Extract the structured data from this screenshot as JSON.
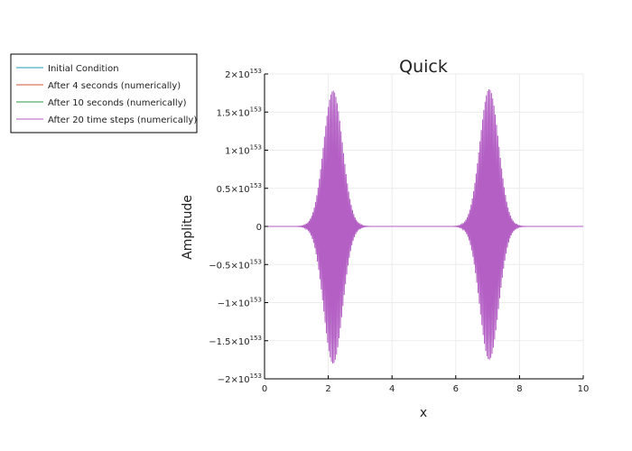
{
  "chart_data": {
    "type": "line",
    "title": "Quick",
    "xlabel": "x",
    "ylabel": "Amplitude",
    "xlim": [
      0,
      10
    ],
    "ylim": [
      -2e+153,
      2e+153
    ],
    "grid": true,
    "legend_position": "outside-top-left",
    "x_ticks": [
      {
        "value": 0,
        "label": "0"
      },
      {
        "value": 2,
        "label": "2"
      },
      {
        "value": 4,
        "label": "4"
      },
      {
        "value": 6,
        "label": "6"
      },
      {
        "value": 8,
        "label": "8"
      },
      {
        "value": 10,
        "label": "10"
      }
    ],
    "y_ticks": [
      {
        "value": 2e+153,
        "mantissa": "2×10",
        "exp": "153"
      },
      {
        "value": 1.5e+153,
        "mantissa": "1.5×10",
        "exp": "153"
      },
      {
        "value": 1e+153,
        "mantissa": "1×10",
        "exp": "153"
      },
      {
        "value": 5e+152,
        "mantissa": "0.5×10",
        "exp": "153"
      },
      {
        "value": 0,
        "mantissa": "0",
        "exp": ""
      },
      {
        "value": -5e+152,
        "mantissa": "−0.5×10",
        "exp": "153"
      },
      {
        "value": -1e+153,
        "mantissa": "−1×10",
        "exp": "153"
      },
      {
        "value": -1.5e+153,
        "mantissa": "−1.5×10",
        "exp": "153"
      },
      {
        "value": -2e+153,
        "mantissa": "−2×10",
        "exp": "153"
      }
    ],
    "series": [
      {
        "name": "Initial Condition",
        "color": "#1f9bb4",
        "visible_trace": false
      },
      {
        "name": "After 4 seconds (numerically)",
        "color": "#d1553a",
        "visible_trace": false
      },
      {
        "name": "After 10 seconds (numerically)",
        "color": "#2e9a43",
        "visible_trace": false
      },
      {
        "name": "After 20 time steps (numerically)",
        "color": "#b35fc4",
        "visible_trace": true,
        "envelope": {
          "pulses": [
            {
              "center": 2.15,
              "peak_pos": 1.78e+153,
              "peak_neg": -1.8e+153,
              "width": 0.42
            },
            {
              "center": 7.05,
              "peak_pos": 1.8e+153,
              "peak_neg": -1.75e+153,
              "width": 0.42
            }
          ],
          "oscillation_spacing": 0.04
        }
      }
    ]
  }
}
